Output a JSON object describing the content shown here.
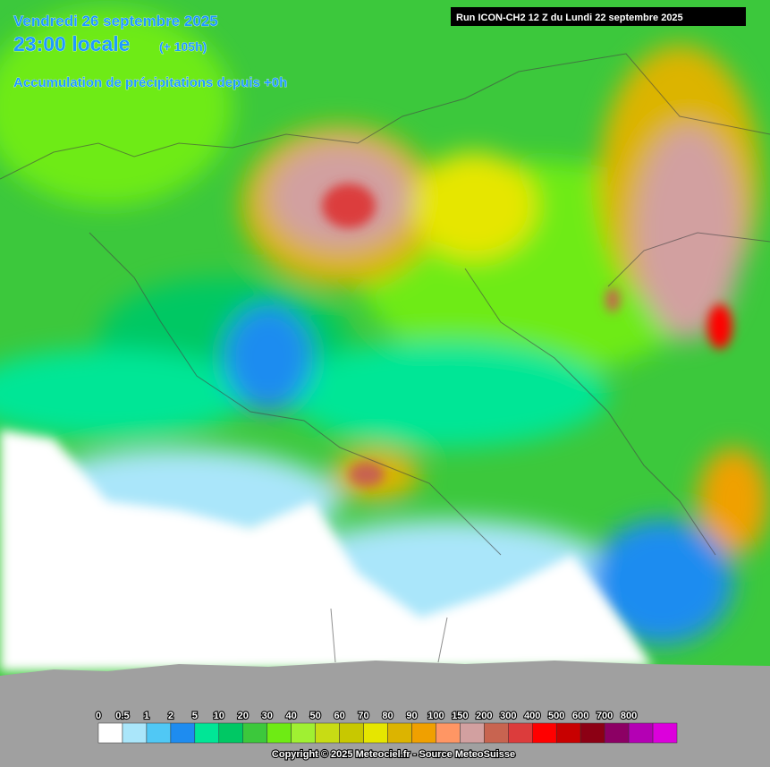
{
  "header": {
    "date": "Vendredi 26 septembre 2025",
    "time": "23:00 locale",
    "lead": "(+ 105h)",
    "product": "Accumulation de précipitations depuis +0h",
    "run": "Run ICON-CH2 12 Z du Lundi 22 septembre 2025"
  },
  "legend": {
    "labels": [
      0,
      0.5,
      1,
      2,
      5,
      10,
      20,
      30,
      40,
      50,
      60,
      70,
      80,
      90,
      100,
      150,
      200,
      300,
      400,
      500,
      600,
      700,
      800
    ],
    "colors": [
      "#ffffff",
      "#aae6fa",
      "#50c8f5",
      "#1e8cf0",
      "#00e696",
      "#00c864",
      "#3cc83c",
      "#6eeb14",
      "#a0f032",
      "#c8dc14",
      "#c8c800",
      "#e6e600",
      "#dcb400",
      "#f0a000",
      "#ff9664",
      "#d2a0a0",
      "#c86450",
      "#dc3c3c",
      "#ff0000",
      "#c80000",
      "#8c0014",
      "#8c0064",
      "#b400b4",
      "#dc00dc"
    ]
  },
  "footer": {
    "copyright": "Copyright © 2025 Meteociel.fr - Source MeteoSuisse"
  }
}
